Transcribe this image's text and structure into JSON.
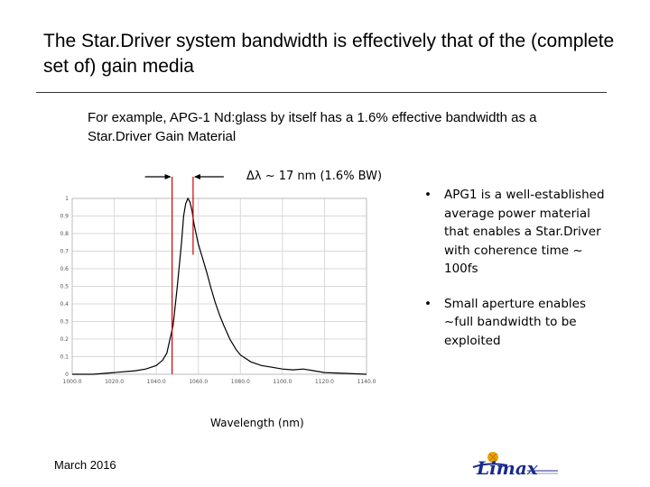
{
  "slide": {
    "title": "The Star.Driver system bandwidth is effectively that of the (complete set of) gain media",
    "subtitle": "For example, APG-1 Nd:glass by itself has a 1.6% effective bandwidth as a Star.Driver Gain Material",
    "bandwidth_annotation": "Δλ ~ 17 nm (1.6% BW)",
    "bullets": [
      "APG1 is a well-established average power material that enables a Star.Driver with coherence time ~ 100fs",
      "Small aperture enables ~full bandwidth to be exploited"
    ],
    "bullet_symbol": "•",
    "date": "March 2016"
  },
  "colors": {
    "annotation": "#cc0000",
    "curve": "#000000",
    "grid": "#d9d9d9",
    "logo": "#1a2a8a",
    "logo_accent": "#e8a400"
  },
  "chart_data": {
    "type": "line",
    "title": "",
    "xlabel": "Wavelength (nm)",
    "ylabel": "",
    "xlim": [
      1000,
      1140
    ],
    "ylim": [
      0,
      1
    ],
    "grid": true,
    "x_ticks": [
      "1000.0",
      "1020.0",
      "1040.0",
      "1060.0",
      "1080.0",
      "1100.0",
      "1120.0",
      "1140.0"
    ],
    "y_ticks": [
      "0",
      "0.1",
      "0.2",
      "0.3",
      "0.4",
      "0.5",
      "0.6",
      "0.7",
      "0.8",
      "0.9",
      "1"
    ],
    "series": [
      {
        "x": [
          1000,
          1010,
          1020,
          1030,
          1035,
          1040,
          1043,
          1045,
          1048,
          1050,
          1052,
          1053,
          1054,
          1055,
          1056,
          1057,
          1058,
          1060,
          1062,
          1064,
          1066,
          1068,
          1070,
          1072,
          1075,
          1078,
          1080,
          1085,
          1090,
          1095,
          1100,
          1105,
          1110,
          1115,
          1120,
          1130,
          1140
        ],
        "y": [
          0.0,
          0.0,
          0.01,
          0.02,
          0.03,
          0.05,
          0.08,
          0.12,
          0.28,
          0.5,
          0.75,
          0.9,
          0.97,
          1.0,
          0.98,
          0.93,
          0.85,
          0.74,
          0.66,
          0.58,
          0.49,
          0.41,
          0.34,
          0.28,
          0.2,
          0.14,
          0.11,
          0.07,
          0.05,
          0.04,
          0.03,
          0.025,
          0.03,
          0.02,
          0.01,
          0.005,
          0.0
        ]
      }
    ],
    "markers": [
      1047.5,
      1057.5
    ]
  }
}
